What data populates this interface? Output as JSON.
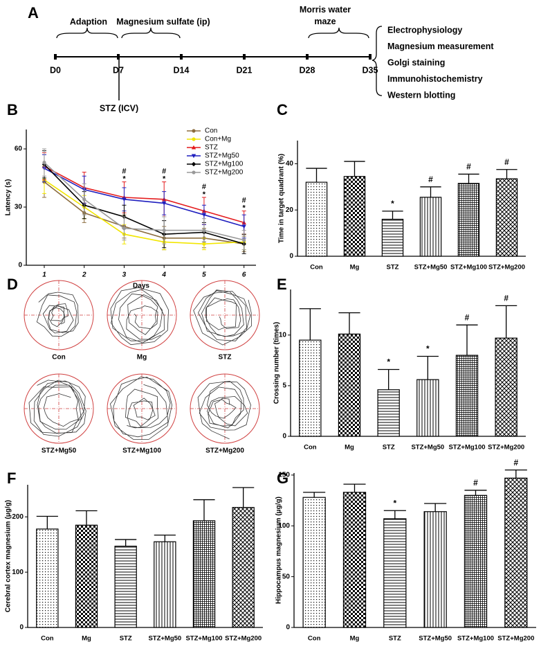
{
  "timeline": {
    "panel": "A",
    "phases": [
      "Adaption",
      "Magnesium sulfate (ip)",
      "Morris water maze"
    ],
    "days": [
      "D0",
      "D7",
      "D14",
      "D21",
      "D28",
      "D35"
    ],
    "injection": "STZ (ICV)",
    "outcomes": [
      "Electrophysiology",
      "Magnesium measurement",
      "Golgi staining",
      "Immunohistochemistry",
      "Western blotting"
    ]
  },
  "tracks": {
    "panel": "D",
    "labels": [
      "Con",
      "Mg",
      "STZ",
      "STZ+Mg50",
      "STZ+Mg100",
      "STZ+Mg200"
    ]
  },
  "chart_data": [
    {
      "panel": "B",
      "type": "line",
      "xlabel": "Days",
      "ylabel": "Latency (s)",
      "x": [
        1,
        2,
        3,
        4,
        5,
        6
      ],
      "xticks": [
        1,
        2,
        3,
        4,
        5,
        6
      ],
      "xlim": [
        0.55,
        6.3
      ],
      "ylim": [
        0,
        70
      ],
      "yticks": [
        0,
        30,
        60
      ],
      "legend": "upper right",
      "series": [
        {
          "name": "Con",
          "color": "#8c6d3f",
          "marker": "circle",
          "values": [
            43,
            27,
            20,
            14,
            14,
            11
          ],
          "errors": [
            8,
            5,
            6,
            6,
            5,
            4
          ]
        },
        {
          "name": "Con+Mg",
          "color": "#f2e600",
          "marker": "circle",
          "values": [
            44,
            30,
            16,
            12,
            11,
            12
          ],
          "errors": [
            7,
            6,
            5,
            4,
            3,
            4
          ]
        },
        {
          "name": "STZ",
          "color": "#e41a1c",
          "marker": "triangle",
          "values": [
            51,
            40,
            35,
            34,
            28,
            22
          ],
          "errors": [
            7,
            8,
            8,
            9,
            7,
            6
          ]
        },
        {
          "name": "STZ+Mg50",
          "color": "#1f1fbf",
          "marker": "triangle-down",
          "values": [
            50,
            39,
            34,
            32,
            26,
            20
          ],
          "errors": [
            7,
            7,
            6,
            6,
            5,
            6
          ]
        },
        {
          "name": "STZ+Mg100",
          "color": "#000000",
          "marker": "diamond",
          "values": [
            52,
            31,
            25,
            16,
            17,
            11
          ],
          "errors": [
            7,
            7,
            6,
            7,
            5,
            5
          ]
        },
        {
          "name": "STZ+Mg200",
          "color": "#999999",
          "marker": "circle",
          "values": [
            53,
            34,
            19,
            18,
            18,
            13
          ],
          "errors": [
            7,
            8,
            6,
            7,
            6,
            5
          ]
        }
      ],
      "annotations": [
        {
          "x": 3,
          "text": "#"
        },
        {
          "x": 3,
          "text": "*"
        },
        {
          "x": 4,
          "text": "#"
        },
        {
          "x": 4,
          "text": "*"
        },
        {
          "x": 5,
          "text": "#"
        },
        {
          "x": 5,
          "text": "*"
        },
        {
          "x": 6,
          "text": "#"
        },
        {
          "x": 6,
          "text": "*"
        }
      ]
    },
    {
      "panel": "C",
      "type": "bar",
      "ylabel": "Time in target quadrant (%)",
      "categories": [
        "Con",
        "Mg",
        "STZ",
        "STZ+Mg50",
        "STZ+Mg100",
        "STZ+Mg200"
      ],
      "color": "#000000",
      "values": [
        32,
        34.5,
        16,
        25.5,
        31.5,
        33.5
      ],
      "errors": [
        6,
        6.5,
        3.5,
        4.5,
        4,
        4
      ],
      "annotations": [
        null,
        null,
        "*",
        "#",
        "#",
        "#"
      ],
      "ylim": [
        0,
        50
      ],
      "yticks": [
        0,
        20,
        40
      ]
    },
    {
      "panel": "E",
      "type": "bar",
      "ylabel": "Crossing number (times)",
      "categories": [
        "Con",
        "Mg",
        "STZ",
        "STZ+Mg50",
        "STZ+Mg100",
        "STZ+Mg200"
      ],
      "color": "#000000",
      "values": [
        9.5,
        10.1,
        4.6,
        5.6,
        8.0,
        9.7
      ],
      "errors": [
        3.1,
        2.1,
        2.0,
        2.3,
        3.0,
        3.2
      ],
      "annotations": [
        null,
        null,
        "*",
        "*",
        "#",
        "#"
      ],
      "ylim": [
        0,
        14.5
      ],
      "yticks": [
        0,
        5,
        10
      ]
    },
    {
      "panel": "F",
      "type": "bar",
      "ylabel": "Cerebral cortex magnesium (μg/g)",
      "categories": [
        "Con",
        "Mg",
        "STZ",
        "STZ+Mg50",
        "STZ+Mg100",
        "STZ+Mg200"
      ],
      "color": "#000000",
      "values": [
        178,
        185,
        147,
        155,
        193,
        217
      ],
      "errors": [
        23,
        26,
        12,
        12,
        38,
        36
      ],
      "annotations": [
        null,
        null,
        null,
        null,
        null,
        null
      ],
      "ylim": [
        0,
        258
      ],
      "yticks": [
        0,
        100,
        200
      ]
    },
    {
      "panel": "G",
      "type": "bar",
      "ylabel": "Hippocampus magnesium (μg/g)",
      "categories": [
        "Con",
        "Mg",
        "STZ",
        "STZ+Mg50",
        "STZ+Mg100",
        "STZ+Mg200"
      ],
      "color": "#000000",
      "values": [
        128,
        133,
        107,
        114,
        130,
        147
      ],
      "errors": [
        5,
        8,
        8,
        8,
        5,
        8
      ],
      "annotations": [
        null,
        null,
        "*",
        null,
        "#",
        "#"
      ],
      "ylim": [
        0,
        152
      ],
      "yticks": [
        0,
        50,
        100,
        150
      ]
    }
  ]
}
